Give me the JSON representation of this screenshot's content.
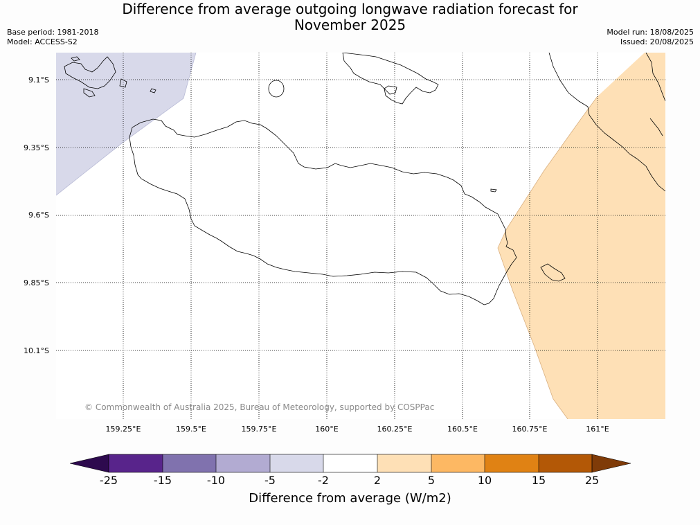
{
  "title_line1": "Difference from average outgoing longwave radiation forecast for",
  "title_line2": "November 2025",
  "base_period": "Base period: 1981-2018",
  "model": "Model: ACCESS-S2",
  "model_run": "Model run: 18/08/2025",
  "issued": "Issued: 20/08/2025",
  "lat_labels": [
    "9.1°S",
    "9.35°S",
    "9.6°S",
    "9.85°S",
    "10.1°S"
  ],
  "lon_labels": [
    "159.25°E",
    "159.5°E",
    "159.75°E",
    "160°E",
    "160.25°E",
    "160.5°E",
    "160.75°E",
    "161°E"
  ],
  "copyright": "© Commonwealth of Australia 2025, Bureau of Meteorology, supported by COSPPac",
  "colorbar": {
    "ticks": [
      "-25",
      "-15",
      "-10",
      "-5",
      "-2",
      "2",
      "5",
      "10",
      "15",
      "25"
    ],
    "label": "Difference from average (W/m2)",
    "colors": [
      "#2d0a4e",
      "#58248b",
      "#8072ae",
      "#b2abd2",
      "#d8d9ea",
      "#ffffff",
      "#fee0b6",
      "#fdb863",
      "#e08214",
      "#b35806",
      "#7f3b08"
    ]
  },
  "regions": [
    {
      "name": "-5 to -2 area (northwest)",
      "color": "#d8d9ea"
    },
    {
      "name": "2 to 5 area (east)",
      "color": "#fee0b6"
    }
  ]
}
